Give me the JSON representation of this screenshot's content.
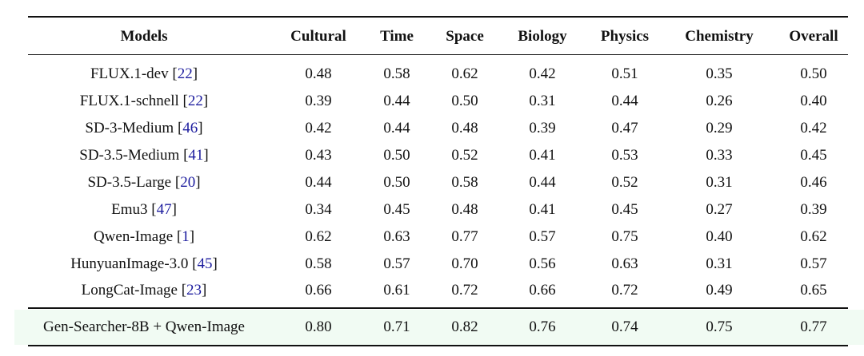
{
  "table": {
    "columns": [
      "Models",
      "Cultural",
      "Time",
      "Space",
      "Biology",
      "Physics",
      "Chemistry",
      "Overall"
    ],
    "rows": [
      {
        "model": "FLUX.1-dev",
        "cite": "22",
        "values": [
          "0.48",
          "0.58",
          "0.62",
          "0.42",
          "0.51",
          "0.35",
          "0.50"
        ]
      },
      {
        "model": "FLUX.1-schnell",
        "cite": "22",
        "values": [
          "0.39",
          "0.44",
          "0.50",
          "0.31",
          "0.44",
          "0.26",
          "0.40"
        ]
      },
      {
        "model": "SD-3-Medium",
        "cite": "46",
        "values": [
          "0.42",
          "0.44",
          "0.48",
          "0.39",
          "0.47",
          "0.29",
          "0.42"
        ]
      },
      {
        "model": "SD-3.5-Medium",
        "cite": "41",
        "values": [
          "0.43",
          "0.50",
          "0.52",
          "0.41",
          "0.53",
          "0.33",
          "0.45"
        ]
      },
      {
        "model": "SD-3.5-Large",
        "cite": "20",
        "values": [
          "0.44",
          "0.50",
          "0.58",
          "0.44",
          "0.52",
          "0.31",
          "0.46"
        ]
      },
      {
        "model": "Emu3",
        "cite": "47",
        "values": [
          "0.34",
          "0.45",
          "0.48",
          "0.41",
          "0.45",
          "0.27",
          "0.39"
        ]
      },
      {
        "model": "Qwen-Image",
        "cite": "1",
        "values": [
          "0.62",
          "0.63",
          "0.77",
          "0.57",
          "0.75",
          "0.40",
          "0.62"
        ]
      },
      {
        "model": "HunyuanImage-3.0",
        "cite": "45",
        "values": [
          "0.58",
          "0.57",
          "0.70",
          "0.56",
          "0.63",
          "0.31",
          "0.57"
        ]
      },
      {
        "model": "LongCat-Image",
        "cite": "23",
        "values": [
          "0.66",
          "0.61",
          "0.72",
          "0.66",
          "0.72",
          "0.49",
          "0.65"
        ]
      }
    ],
    "highlight_row": {
      "model": "Gen-Searcher-8B + Qwen-Image",
      "values": [
        "0.80",
        "0.71",
        "0.82",
        "0.76",
        "0.74",
        "0.75",
        "0.77"
      ]
    },
    "colors": {
      "citation": "#1c1c9e",
      "highlight_bg": "#f1fbf3"
    }
  }
}
